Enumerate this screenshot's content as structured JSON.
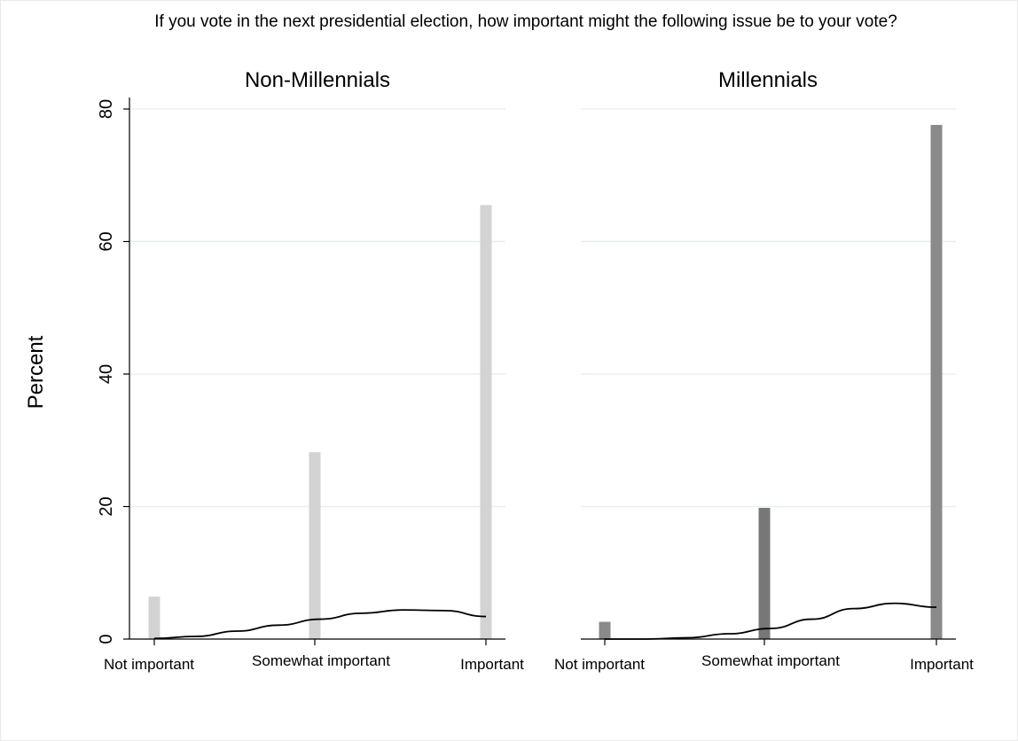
{
  "title": "If you vote in the next presidential election, how important might the following issue be to your vote?",
  "colors": {
    "light_bar": "#d3d3d3",
    "dark_bar": "#8a8a8a",
    "darker_bar": "#777777",
    "curve": "#000000",
    "grid": "#e8eff0",
    "axis": "#000000"
  },
  "chart_data": [
    {
      "type": "bar",
      "title": "Non-Millennials",
      "ylabel": "Percent",
      "ylim": [
        0,
        80
      ],
      "yticks": [
        "0",
        "20",
        "40",
        "60",
        "80"
      ],
      "grid": true,
      "categories": [
        "Not important",
        "Somewhat important",
        "Important"
      ],
      "values": [
        6.4,
        28.2,
        65.5
      ],
      "curve": {
        "type": "density-overlay",
        "x": [
          0,
          0.25,
          0.5,
          0.75,
          1.0,
          1.25,
          1.5,
          1.75,
          2.0
        ],
        "y": [
          0.1,
          0.4,
          1.2,
          2.1,
          3.0,
          3.9,
          4.4,
          4.3,
          3.4
        ]
      }
    },
    {
      "type": "bar",
      "title": "Millennials",
      "ylabel": "Percent",
      "ylim": [
        0,
        80
      ],
      "yticks": [
        "0",
        "20",
        "40",
        "60",
        "80"
      ],
      "grid": true,
      "categories": [
        "Not important",
        "Somewhat important",
        "Important"
      ],
      "values": [
        2.6,
        19.8,
        77.6
      ],
      "curve": {
        "type": "density-overlay",
        "x": [
          0,
          0.25,
          0.5,
          0.75,
          1.0,
          1.25,
          1.5,
          1.75,
          2.0
        ],
        "y": [
          0.0,
          0.0,
          0.2,
          0.8,
          1.6,
          3.0,
          4.6,
          5.4,
          4.8
        ]
      }
    }
  ]
}
